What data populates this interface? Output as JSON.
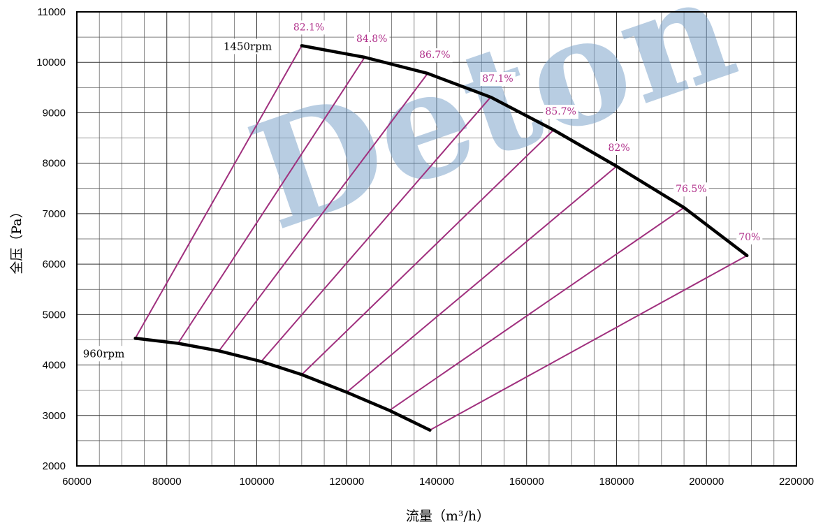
{
  "chart_data": {
    "type": "line",
    "title": "",
    "xlabel": "流量（m³/h）",
    "ylabel": "全压（Pa）",
    "xlim": [
      60000,
      220000
    ],
    "ylim": [
      2000,
      11000
    ],
    "x_ticks": [
      60000,
      80000,
      100000,
      120000,
      140000,
      160000,
      180000,
      200000,
      220000
    ],
    "y_ticks": [
      2000,
      3000,
      4000,
      5000,
      6000,
      7000,
      8000,
      9000,
      10000,
      11000
    ],
    "grid": true,
    "watermark": "Deton",
    "speed_curves": [
      {
        "name": "1450rpm",
        "x": [
          110000,
          124000,
          138000,
          152000,
          166000,
          180000,
          195000,
          209000
        ],
        "y": [
          10330,
          10100,
          9780,
          9310,
          8660,
          7940,
          7120,
          6170
        ]
      },
      {
        "name": "960rpm",
        "x": [
          73000,
          82500,
          91600,
          101000,
          110000,
          120000,
          129500,
          138500
        ],
        "y": [
          4530,
          4430,
          4280,
          4070,
          3810,
          3460,
          3100,
          2710
        ]
      }
    ],
    "efficiency_lines": [
      {
        "label": "82.1%",
        "from": [
          73000,
          4530
        ],
        "to": [
          110000,
          10330
        ]
      },
      {
        "label": "84.8%",
        "from": [
          82500,
          4430
        ],
        "to": [
          124000,
          10100
        ]
      },
      {
        "label": "86.7%",
        "from": [
          91600,
          4280
        ],
        "to": [
          138000,
          9780
        ]
      },
      {
        "label": "87.1%",
        "from": [
          101000,
          4070
        ],
        "to": [
          152000,
          9310
        ]
      },
      {
        "label": "85.7%",
        "from": [
          110000,
          3810
        ],
        "to": [
          166000,
          8660
        ]
      },
      {
        "label": "82%",
        "from": [
          120000,
          3460
        ],
        "to": [
          180000,
          7940
        ]
      },
      {
        "label": "76.5%",
        "from": [
          129500,
          3100
        ],
        "to": [
          195000,
          7120
        ]
      },
      {
        "label": "70%",
        "from": [
          138500,
          2710
        ],
        "to": [
          209000,
          6170
        ]
      }
    ]
  }
}
